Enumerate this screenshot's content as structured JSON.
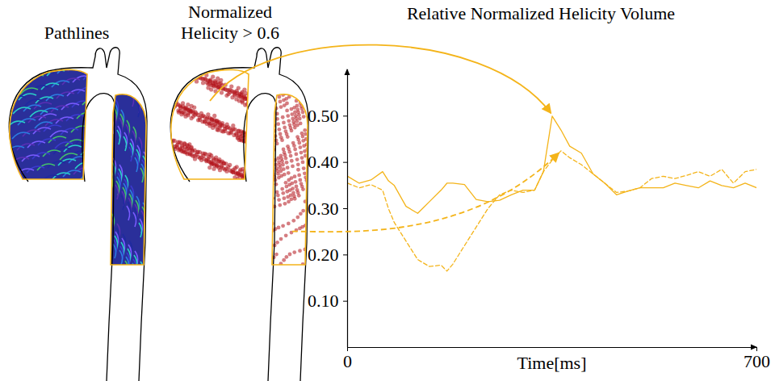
{
  "chart_data": {
    "type": "line",
    "title": "Relative Normalized Helicity Volume",
    "x_label": "Time[ms]",
    "annotations": [
      "Pathlines",
      "Normalized Helicity > 0.6"
    ],
    "x": [
      0,
      20,
      40,
      60,
      70,
      80,
      100,
      120,
      140,
      160,
      170,
      180,
      200,
      220,
      240,
      260,
      280,
      300,
      320,
      335,
      350,
      365,
      380,
      400,
      420,
      440,
      460,
      480,
      500,
      520,
      540,
      560,
      580,
      600,
      620,
      640,
      660,
      680,
      700
    ],
    "series": [
      {
        "color": "#f4b41a",
        "line_style": "solid",
        "values": [
          0.37,
          0.355,
          0.362,
          0.38,
          0.36,
          0.35,
          0.305,
          0.29,
          0.315,
          0.34,
          0.355,
          0.355,
          0.352,
          0.32,
          0.315,
          0.318,
          0.33,
          0.34,
          0.34,
          0.38,
          0.5,
          0.47,
          0.435,
          0.42,
          0.375,
          0.355,
          0.33,
          0.338,
          0.345,
          0.345,
          0.345,
          0.355,
          0.35,
          0.345,
          0.36,
          0.35,
          0.345,
          0.355,
          0.345
        ]
      },
      {
        "color": "#f4b41a",
        "line_style": "dashed",
        "values": [
          0.355,
          0.345,
          0.352,
          0.34,
          0.3,
          0.27,
          0.23,
          0.19,
          0.175,
          0.178,
          0.165,
          0.18,
          0.22,
          0.26,
          0.3,
          0.33,
          0.34,
          0.335,
          0.34,
          0.38,
          0.405,
          0.425,
          0.41,
          0.395,
          0.375,
          0.355,
          0.335,
          0.338,
          0.345,
          0.365,
          0.37,
          0.365,
          0.372,
          0.38,
          0.37,
          0.385,
          0.355,
          0.38,
          0.385
        ]
      }
    ],
    "xlim": [
      0,
      700
    ],
    "xticks": [
      0,
      700
    ],
    "ylim": [
      0,
      0.6
    ],
    "yticks": [
      0.1,
      0.2,
      0.3,
      0.4,
      0.5
    ],
    "grid": false
  }
}
